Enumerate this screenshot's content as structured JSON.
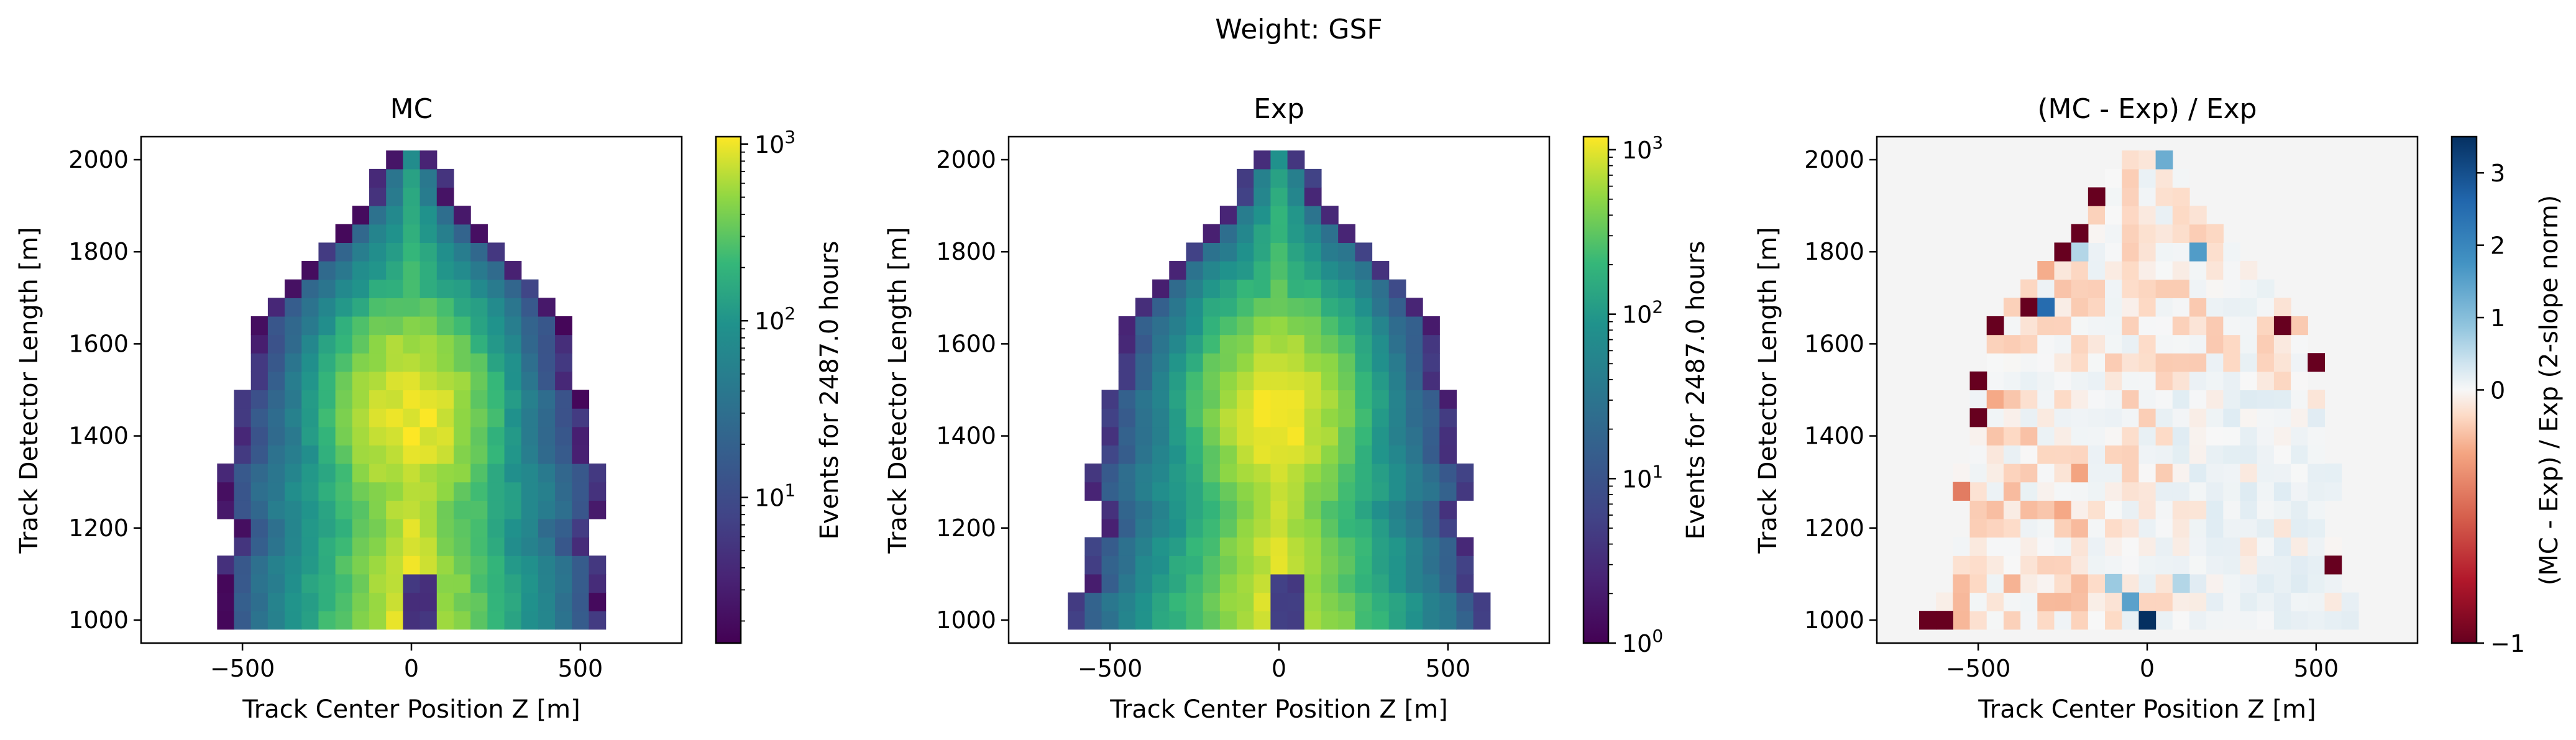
{
  "figure": {
    "suptitle": "Weight: GSF"
  },
  "chart_data": [
    {
      "type": "heatmap",
      "title": "MC",
      "xlabel": "Track Center Position Z [m]",
      "ylabel": "Track Detector Length [m]",
      "xlim": [
        -800,
        800
      ],
      "ylim": [
        950,
        2050
      ],
      "xticks": [
        -500,
        0,
        500
      ],
      "yticks": [
        1000,
        1200,
        1400,
        1600,
        1800,
        2000
      ],
      "colorbar": {
        "label": "Events for 2487.0 hours",
        "scale": "log",
        "range": [
          1.5,
          1100
        ],
        "tick_labels": [
          "10^1",
          "10^2",
          "10^3"
        ],
        "colormap": "viridis"
      },
      "bin_size": {
        "z": 50,
        "length": 40
      },
      "halfwidth_by_row": [
        575,
        575,
        575,
        575,
        525,
        525,
        575,
        575,
        575,
        525,
        525,
        525,
        525,
        475,
        475,
        475,
        475,
        425,
        375,
        325,
        275,
        225,
        175,
        125,
        125,
        75
      ],
      "peak": {
        "z": 0,
        "length": 1440,
        "events": 1000
      },
      "hole": {
        "z": 10,
        "length": 1030,
        "events": 5
      }
    },
    {
      "type": "heatmap",
      "title": "Exp",
      "xlabel": "Track Center Position Z [m]",
      "ylabel": "Track Detector Length [m]",
      "xlim": [
        -800,
        800
      ],
      "ylim": [
        950,
        2050
      ],
      "xticks": [
        -500,
        0,
        500
      ],
      "yticks": [
        1000,
        1200,
        1400,
        1600,
        1800,
        2000
      ],
      "colorbar": {
        "label": "Events for 2487.0 hours",
        "scale": "log",
        "range": [
          1,
          1200
        ],
        "tick_labels": [
          "10^0",
          "10^1",
          "10^2",
          "10^3"
        ],
        "colormap": "viridis"
      },
      "bin_size": {
        "z": 50,
        "length": 40
      },
      "halfwidth_by_row": [
        625,
        625,
        575,
        575,
        575,
        525,
        525,
        575,
        575,
        525,
        525,
        525,
        525,
        475,
        475,
        475,
        475,
        425,
        375,
        325,
        275,
        225,
        175,
        125,
        125,
        75
      ],
      "peak": {
        "z": 0,
        "length": 1440,
        "events": 1100
      },
      "hole": {
        "z": 10,
        "length": 1030,
        "events": 5
      }
    },
    {
      "type": "heatmap",
      "title": "(MC - Exp) / Exp",
      "xlabel": "Track Center Position Z [m]",
      "ylabel": "Track Detector Length [m]",
      "xlim": [
        -800,
        800
      ],
      "ylim": [
        950,
        2050
      ],
      "xticks": [
        -500,
        0,
        500
      ],
      "yticks": [
        1000,
        1200,
        1400,
        1600,
        1800,
        2000
      ],
      "colorbar": {
        "label": "(MC - Exp) / Exp (2-slope norm)",
        "scale": "two-slope",
        "range": [
          -1,
          3.5
        ],
        "center": 0,
        "ticks": [
          -1,
          0,
          1,
          2,
          3
        ],
        "tick_labels": [
          "−1",
          "0",
          "1",
          "2",
          "3"
        ],
        "colormap": "RdBu"
      },
      "bin_size": {
        "z": 50,
        "length": 40
      },
      "notable_bins": [
        {
          "z": 50,
          "length": 2000,
          "value": 1.3
        },
        {
          "z": -150,
          "length": 1920,
          "value": -1
        },
        {
          "z": -200,
          "length": 1840,
          "value": -1
        },
        {
          "z": -250,
          "length": 1800,
          "value": -1
        },
        {
          "z": -200,
          "length": 1800,
          "value": 0.6
        },
        {
          "z": 150,
          "length": 1800,
          "value": 1.6
        },
        {
          "z": -350,
          "length": 1680,
          "value": -1
        },
        {
          "z": -300,
          "length": 1680,
          "value": 2.5
        },
        {
          "z": -450,
          "length": 1640,
          "value": -1
        },
        {
          "z": 400,
          "length": 1640,
          "value": -1
        },
        {
          "z": 500,
          "length": 1560,
          "value": -1
        },
        {
          "z": -500,
          "length": 1520,
          "value": -1
        },
        {
          "z": -500,
          "length": 1440,
          "value": -1
        },
        {
          "z": -550,
          "length": 1280,
          "value": -0.4
        },
        {
          "z": 550,
          "length": 1120,
          "value": -1
        },
        {
          "z": -650,
          "length": 1000,
          "value": -1
        },
        {
          "z": -600,
          "length": 1000,
          "value": -1
        },
        {
          "z": 0,
          "length": 1000,
          "value": 3.5
        },
        {
          "z": -50,
          "length": 1040,
          "value": 1.5
        },
        {
          "z": -100,
          "length": 1080,
          "value": 0.8
        },
        {
          "z": 100,
          "length": 1080,
          "value": 0.6
        }
      ]
    }
  ]
}
